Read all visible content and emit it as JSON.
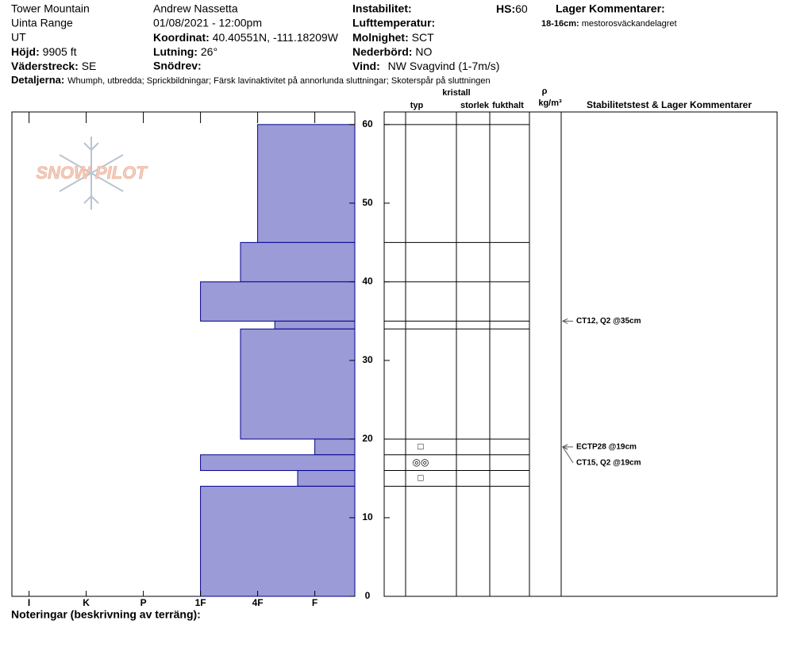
{
  "header": {
    "site": [
      "Tower Mountain",
      "Uinta Range",
      "UT"
    ],
    "observer": "Andrew Nassetta",
    "datetime": "01/08/2021 - 12:00pm",
    "fields": {
      "elevation": {
        "label": "Höjd:",
        "value": "9905 ft"
      },
      "aspect": {
        "label": "Väderstreck:",
        "value": "SE"
      },
      "coordinates": {
        "label": "Koordinat:",
        "value": "40.40551N, -111.18209W"
      },
      "slope": {
        "label": "Lutning:",
        "value": "26°"
      },
      "wind_loading": {
        "label": "Snödrev:"
      },
      "instability": {
        "label": "Instabilitet:"
      },
      "air_temp": {
        "label": "Lufttemperatur:"
      },
      "sky": {
        "label": "Molnighet:",
        "value": "SCT"
      },
      "precip": {
        "label": "Nederbörd:",
        "value": "NO"
      },
      "wind": {
        "label": "Vind:",
        "value": "NW Svagvind (1-7m/s)"
      },
      "hs": {
        "label": "HS:",
        "value": 60
      },
      "details": {
        "label": "Detaljerna:",
        "value": "Whumph, utbredda;  Sprickbildningar;  Färsk lavinaktivitet på annorlunda sluttningar;  Skoterspår på sluttningen"
      }
    },
    "layer_comments": {
      "label": "Lager Kommentarer:",
      "items": [
        {
          "range": "18-16cm:",
          "text": "mestorosväckandelagret"
        }
      ]
    },
    "notes_label": "Noteringar (beskrivning av terräng):",
    "logo": "SNOW PILOT"
  },
  "chart_data": {
    "type": "snow-profile",
    "color": "#9b9bd7",
    "xlim": [
      6.3,
      0.3
    ],
    "xticks": [
      {
        "value": 6,
        "label": "I"
      },
      {
        "value": 5,
        "label": "K"
      },
      {
        "value": 4,
        "label": "P"
      },
      {
        "value": 3,
        "label": "1F"
      },
      {
        "value": 2,
        "label": "4F"
      },
      {
        "value": 1,
        "label": "F"
      }
    ],
    "ylim": [
      0,
      61.6
    ],
    "yticks": [
      0,
      10,
      20,
      30,
      40,
      50,
      60
    ],
    "layers": [
      {
        "top": 60,
        "bottom": 45,
        "hardness": 2
      },
      {
        "top": 45,
        "bottom": 40,
        "hardness": 2.3
      },
      {
        "top": 40,
        "bottom": 35,
        "hardness": 3
      },
      {
        "top": 35,
        "bottom": 34,
        "hardness": 1.7
      },
      {
        "top": 34,
        "bottom": 20,
        "hardness": 2.3
      },
      {
        "top": 20,
        "bottom": 18,
        "hardness": 1
      },
      {
        "top": 18,
        "bottom": 16,
        "hardness": 3
      },
      {
        "top": 16,
        "bottom": 14,
        "hardness": 1.3
      },
      {
        "top": 14,
        "bottom": 0,
        "hardness": 3
      }
    ],
    "columns": [
      "typ",
      "kristall",
      "storlek",
      "fukthalt",
      "ρ",
      "kg/m³",
      "Stabilitetstest & Lager Kommentarer"
    ],
    "grains": [
      {
        "height": 19,
        "symbol": "□"
      },
      {
        "height": 17,
        "symbol": "◎◎"
      },
      {
        "height": 15,
        "symbol": "□"
      }
    ],
    "tests": [
      {
        "height": 35,
        "label": "CT12, Q2 @35cm"
      },
      {
        "height": 19,
        "label": "ECTP28 @19cm"
      },
      {
        "height": 19,
        "label": "CT15, Q2 @19cm"
      }
    ]
  }
}
